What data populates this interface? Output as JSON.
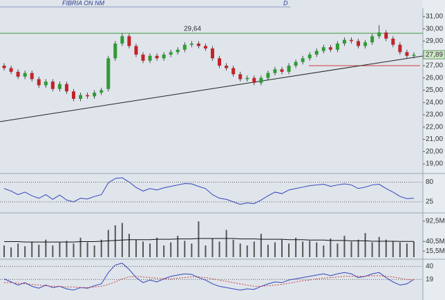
{
  "chart_data": [
    {
      "type": "candlestick",
      "title": "FIBRIA ON NM",
      "period": "D",
      "open": [
        27.0,
        26.8,
        26.5,
        26.1,
        26.4,
        25.9,
        25.4,
        25.7,
        25.1,
        25.5,
        24.9,
        24.3,
        24.6,
        24.5,
        24.8,
        25.1,
        27.6,
        28.8,
        29.4,
        28.6,
        27.9,
        27.4,
        27.8,
        27.6,
        27.9,
        28.1,
        28.3,
        28.7,
        28.8,
        28.6,
        28.4,
        27.6,
        27.0,
        26.8,
        26.3,
        25.9,
        26.0,
        25.6,
        26.0,
        26.4,
        26.7,
        26.5,
        27.0,
        27.3,
        27.6,
        27.9,
        28.2,
        28.5,
        28.3,
        28.8,
        29.1,
        29.0,
        28.6,
        28.9,
        29.4,
        29.7,
        29.2,
        28.7,
        28.1,
        27.8
      ],
      "high": [
        27.2,
        27.0,
        26.7,
        26.6,
        26.6,
        26.1,
        25.9,
        25.9,
        25.7,
        25.7,
        25.1,
        24.8,
        24.8,
        25.0,
        25.2,
        27.8,
        29.0,
        29.64,
        29.6,
        28.8,
        28.1,
        28.0,
        28.0,
        28.1,
        28.3,
        28.5,
        28.9,
        29.0,
        29.0,
        28.8,
        28.6,
        27.8,
        27.2,
        27.0,
        26.5,
        26.2,
        26.2,
        26.2,
        26.6,
        26.9,
        26.9,
        27.2,
        27.5,
        27.8,
        28.1,
        28.4,
        28.7,
        28.7,
        29.0,
        29.3,
        29.3,
        29.2,
        29.1,
        29.6,
        30.3,
        29.9,
        29.4,
        28.9,
        28.3,
        28.1
      ],
      "low": [
        26.6,
        26.3,
        25.9,
        25.9,
        25.7,
        25.2,
        25.2,
        24.9,
        24.9,
        24.7,
        24.1,
        24.1,
        24.3,
        24.3,
        24.6,
        24.9,
        27.4,
        28.6,
        28.4,
        27.7,
        27.2,
        27.2,
        27.4,
        27.4,
        27.7,
        27.9,
        28.1,
        28.5,
        28.4,
        28.2,
        27.4,
        26.8,
        26.6,
        26.1,
        25.7,
        25.7,
        25.4,
        25.4,
        25.8,
        26.2,
        26.3,
        26.3,
        26.8,
        27.1,
        27.4,
        27.7,
        28.0,
        28.1,
        28.1,
        28.6,
        28.8,
        28.4,
        28.4,
        28.7,
        29.2,
        29.0,
        28.5,
        27.9,
        27.6,
        27.6
      ],
      "close": [
        26.8,
        26.5,
        26.1,
        26.4,
        25.9,
        25.4,
        25.7,
        25.1,
        25.5,
        24.9,
        24.3,
        24.6,
        24.5,
        24.8,
        25.0,
        27.6,
        28.8,
        29.4,
        28.6,
        27.9,
        27.4,
        27.8,
        27.6,
        27.9,
        28.1,
        28.3,
        28.7,
        28.8,
        28.6,
        28.4,
        27.6,
        27.0,
        26.8,
        26.3,
        25.9,
        26.0,
        25.6,
        26.0,
        26.4,
        26.7,
        26.5,
        27.0,
        27.3,
        27.6,
        27.9,
        28.2,
        28.5,
        28.3,
        28.8,
        29.1,
        29.0,
        28.6,
        28.9,
        29.4,
        29.7,
        29.2,
        28.7,
        28.1,
        27.8,
        27.89
      ],
      "up_color": "#2f9b35",
      "down_color": "#c2242b",
      "ylim": [
        18.27,
        31.56
      ],
      "yticks": [
        {
          "value": 31,
          "label": "31,00"
        },
        {
          "value": 30,
          "label": "30,00"
        },
        {
          "value": 29,
          "label": "29,00"
        },
        {
          "value": 28,
          "label": "28,00"
        },
        {
          "value": 27,
          "label": "27,00"
        },
        {
          "value": 26,
          "label": "26,00"
        },
        {
          "value": 25,
          "label": "25,00"
        },
        {
          "value": 24,
          "label": "24,00"
        },
        {
          "value": 23,
          "label": "23,00"
        },
        {
          "value": 22,
          "label": "22,00"
        },
        {
          "value": 21,
          "label": "21,00"
        },
        {
          "value": 20,
          "label": "20,00"
        },
        {
          "value": 19,
          "label": "19,00"
        }
      ],
      "resistance": {
        "value": 29.64,
        "label": "29,64",
        "color": "#3a9a3a"
      },
      "support": {
        "value": 27.0,
        "color": "#d23a3a"
      },
      "trendline": [
        22.44,
        27.79
      ],
      "last_price": {
        "value": 27.89,
        "label": "27,89"
      }
    },
    {
      "type": "line",
      "ylim": [
        0,
        100
      ],
      "yticks": [
        80,
        25
      ],
      "grid": true,
      "series": [
        {
          "color": "#3344bb",
          "values": [
            62,
            55,
            45,
            52,
            42,
            35,
            45,
            32,
            44,
            30,
            25,
            35,
            33,
            40,
            45,
            78,
            90,
            92,
            80,
            65,
            55,
            62,
            58,
            64,
            68,
            72,
            76,
            75,
            68,
            62,
            45,
            35,
            32,
            25,
            18,
            22,
            20,
            30,
            42,
            52,
            48,
            58,
            62,
            66,
            70,
            72,
            74,
            68,
            72,
            75,
            72,
            62,
            66,
            72,
            74,
            62,
            52,
            40,
            34,
            35
          ]
        }
      ]
    },
    {
      "type": "bar",
      "color": "#555555",
      "ylim": [
        0,
        106.7
      ],
      "yticks": [
        {
          "value": 92.5,
          "label": "92,5M"
        },
        {
          "value": 40.5,
          "label": "40,5M"
        },
        {
          "value": 15.5,
          "label": "15,5M"
        }
      ],
      "values": [
        30,
        25,
        35,
        28,
        40,
        32,
        45,
        30,
        38,
        42,
        35,
        50,
        38,
        30,
        45,
        70,
        82,
        88,
        60,
        45,
        40,
        35,
        50,
        30,
        38,
        55,
        42,
        35,
        92,
        30,
        48,
        40,
        70,
        45,
        35,
        30,
        40,
        60,
        32,
        38,
        45,
        35,
        50,
        40,
        42,
        38,
        30,
        48,
        35,
        55,
        40,
        45,
        62,
        38,
        52,
        45,
        40,
        38,
        35,
        40
      ],
      "series": [
        {
          "color": "#111111",
          "values": [
            40,
            40,
            40,
            39,
            39,
            39,
            39,
            39,
            39,
            39,
            39,
            40,
            40,
            40,
            41,
            42,
            43,
            44,
            45,
            45,
            45,
            45,
            46,
            46,
            46,
            47,
            47,
            47,
            48,
            48,
            48,
            48,
            48,
            48,
            47,
            47,
            47,
            46,
            46,
            46,
            46,
            45,
            45,
            45,
            44,
            44,
            44,
            43,
            43,
            43,
            42,
            42,
            42,
            41,
            41,
            41,
            41,
            40.5,
            40.5,
            40.5
          ]
        }
      ]
    },
    {
      "type": "line",
      "ylim": [
        -5,
        48
      ],
      "yticks": [
        40,
        19
      ],
      "grid": true,
      "series": [
        {
          "color": "#3344bb",
          "values": [
            20,
            15,
            10,
            14,
            8,
            5,
            10,
            6,
            8,
            4,
            2,
            6,
            5,
            9,
            12,
            30,
            42,
            45,
            35,
            22,
            14,
            18,
            15,
            20,
            24,
            26,
            28,
            27,
            22,
            18,
            12,
            8,
            6,
            4,
            2,
            4,
            3,
            8,
            12,
            15,
            14,
            18,
            20,
            22,
            24,
            26,
            28,
            25,
            28,
            30,
            28,
            22,
            24,
            28,
            30,
            22,
            15,
            10,
            12,
            19
          ]
        },
        {
          "color": "#d23a3a",
          "dash": true,
          "values": [
            14,
            14,
            13,
            12,
            11,
            10,
            9,
            8,
            8,
            7,
            7,
            6,
            6,
            7,
            8,
            11,
            15,
            20,
            23,
            24,
            23,
            22,
            21,
            20,
            20,
            21,
            22,
            23,
            23,
            22,
            20,
            18,
            16,
            14,
            12,
            10,
            8,
            8,
            9,
            10,
            11,
            13,
            15,
            17,
            18,
            20,
            21,
            22,
            23,
            24,
            24,
            24,
            24,
            25,
            25,
            24,
            23,
            21,
            19,
            18
          ]
        }
      ]
    }
  ]
}
